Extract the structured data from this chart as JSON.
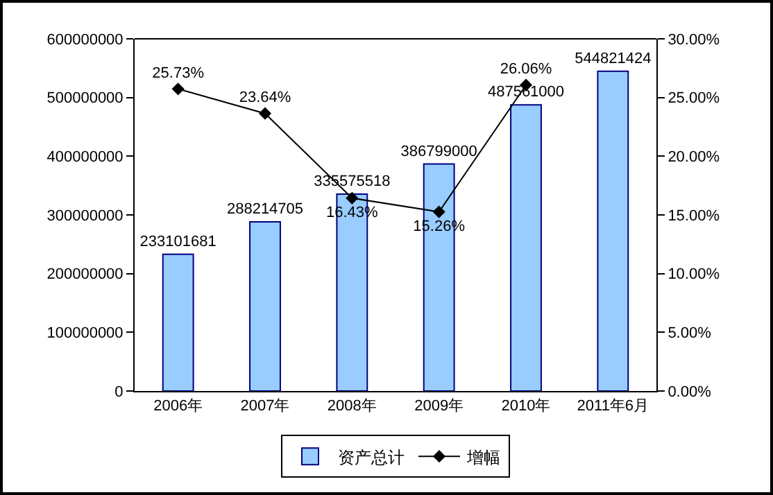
{
  "chart_data": {
    "type": "bar",
    "categories": [
      "2006年",
      "2007年",
      "2008年",
      "2009年",
      "2010年",
      "2011年6月"
    ],
    "series": [
      {
        "name": "资产总计",
        "color": "#99ccff",
        "values": [
          233101681,
          288214705,
          335575518,
          386799000,
          487561000,
          544821424
        ]
      },
      {
        "name": "增幅",
        "type": "line",
        "axis": "y2",
        "color": "#000000",
        "marker": "diamond",
        "values": [
          25.73,
          23.64,
          16.43,
          15.26,
          26.06,
          null
        ],
        "value_labels": [
          "25.73%",
          "23.64%",
          "16.43%",
          "15.26%",
          "26.06%",
          null
        ]
      }
    ],
    "data_labels": true,
    "ylim": [
      0,
      600000000
    ],
    "yticks": [
      0,
      100000000,
      200000000,
      300000000,
      400000000,
      500000000,
      600000000
    ],
    "y2lim": [
      0,
      30
    ],
    "y2ticks": [
      {
        "value": 0,
        "label": "0.00%"
      },
      {
        "value": 5,
        "label": "5.00%"
      },
      {
        "value": 10,
        "label": "10.00%"
      },
      {
        "value": 15,
        "label": "15.00%"
      },
      {
        "value": 20,
        "label": "20.00%"
      },
      {
        "value": 25,
        "label": "25.00%"
      },
      {
        "value": 30,
        "label": "30.00%"
      }
    ],
    "grid": false,
    "legend": "bottom"
  }
}
